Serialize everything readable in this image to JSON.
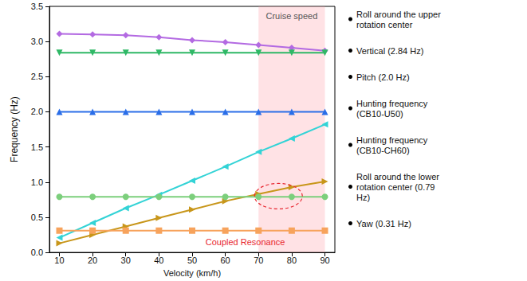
{
  "chart_data": {
    "type": "line",
    "x_label": "Velocity (km/h)",
    "y_label": "Frequency (Hz)",
    "x": [
      10,
      20,
      30,
      40,
      50,
      60,
      70,
      80,
      90
    ],
    "xlim": [
      7,
      93
    ],
    "xticks": [
      10,
      20,
      30,
      40,
      50,
      60,
      70,
      80,
      90
    ],
    "ylim": [
      0,
      3.5
    ],
    "yticks": [
      {
        "value": 0,
        "label": "0.0"
      },
      {
        "value": 0.5,
        "label": "0.5"
      },
      {
        "value": 1,
        "label": "1.0"
      },
      {
        "value": 1.5,
        "label": "1.5"
      },
      {
        "value": 2,
        "label": "2.0"
      },
      {
        "value": 2.5,
        "label": "2.5"
      },
      {
        "value": 3,
        "label": "3.0"
      },
      {
        "value": 3.5,
        "label": "3.5"
      }
    ],
    "grid": false,
    "legend": "right",
    "series": [
      {
        "name": "Roll around the upper rotation center",
        "color": "#b36ae2",
        "marker": "diamond",
        "values": [
          3.11,
          3.1,
          3.09,
          3.06,
          3.02,
          2.99,
          2.95,
          2.91,
          2.87
        ]
      },
      {
        "name": "Vertical (2.84 Hz)",
        "color": "#2fb866",
        "marker": "triangle-down",
        "values": [
          2.84,
          2.84,
          2.84,
          2.84,
          2.84,
          2.84,
          2.84,
          2.84,
          2.84
        ]
      },
      {
        "name": "Pitch (2.0 Hz)",
        "color": "#2a6ee8",
        "marker": "triangle",
        "values": [
          2.0,
          2.0,
          2.0,
          2.0,
          2.0,
          2.0,
          2.0,
          2.0,
          2.0
        ]
      },
      {
        "name": "Hunting frequency (CB10-U50)",
        "color": "#33d3d6",
        "marker": "triangle-left",
        "values": [
          0.21,
          0.42,
          0.63,
          0.82,
          1.02,
          1.22,
          1.43,
          1.62,
          1.82
        ]
      },
      {
        "name": "Hunting frequency (CB10-CH60)",
        "color": "#c8961a",
        "marker": "triangle-right",
        "values": [
          0.13,
          0.25,
          0.37,
          0.49,
          0.61,
          0.73,
          0.83,
          0.93,
          1.01
        ]
      },
      {
        "name": "Roll around the lower rotation center (0.79 Hz)",
        "color": "#7ccf7c",
        "marker": "circle",
        "values": [
          0.79,
          0.79,
          0.79,
          0.79,
          0.79,
          0.79,
          0.79,
          0.79,
          0.79
        ]
      },
      {
        "name": "Yaw (0.31 Hz)",
        "color": "#f7a35c",
        "marker": "square",
        "values": [
          0.31,
          0.31,
          0.31,
          0.31,
          0.31,
          0.31,
          0.31,
          0.31,
          0.31
        ]
      }
    ],
    "shaded_region": {
      "from": 70,
      "to": 90,
      "label": "Cruise speed"
    },
    "annotations": [
      {
        "text": "Coupled Resonance",
        "x": 66,
        "y": 0.15,
        "circle_x": 76,
        "circle_y": 0.8
      }
    ]
  }
}
